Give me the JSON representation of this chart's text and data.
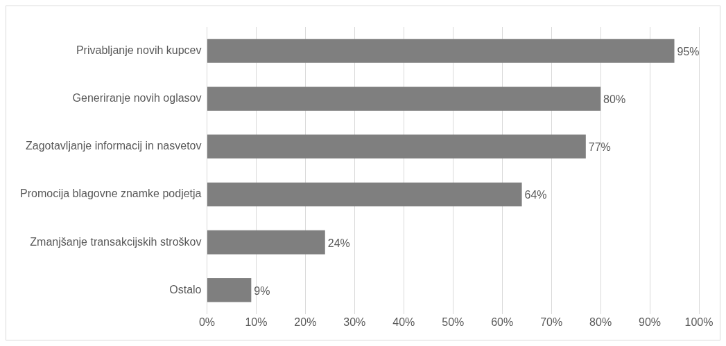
{
  "chart_data": {
    "type": "bar",
    "orientation": "horizontal",
    "categories": [
      "Privabljanje novih kupcev",
      "Generiranje novih oglasov",
      "Zagotavljanje informacij in nasvetov",
      "Promocija blagovne znamke podjetja",
      "Zmanjšanje transakcijskih stroškov",
      "Ostalo"
    ],
    "values": [
      95,
      80,
      77,
      64,
      24,
      9
    ],
    "value_labels": [
      "95%",
      "80%",
      "77%",
      "64%",
      "24%",
      "9%"
    ],
    "color": "#7f7f7f",
    "xlim": [
      0,
      100
    ],
    "xticks": [
      {
        "value": 0,
        "label": "0%"
      },
      {
        "value": 10,
        "label": "10%"
      },
      {
        "value": 20,
        "label": "20%"
      },
      {
        "value": 30,
        "label": "30%"
      },
      {
        "value": 40,
        "label": "40%"
      },
      {
        "value": 50,
        "label": "50%"
      },
      {
        "value": 60,
        "label": "60%"
      },
      {
        "value": 70,
        "label": "70%"
      },
      {
        "value": 80,
        "label": "80%"
      },
      {
        "value": 90,
        "label": "90%"
      },
      {
        "value": 100,
        "label": "100%"
      }
    ],
    "grid": "x",
    "legend": false
  }
}
